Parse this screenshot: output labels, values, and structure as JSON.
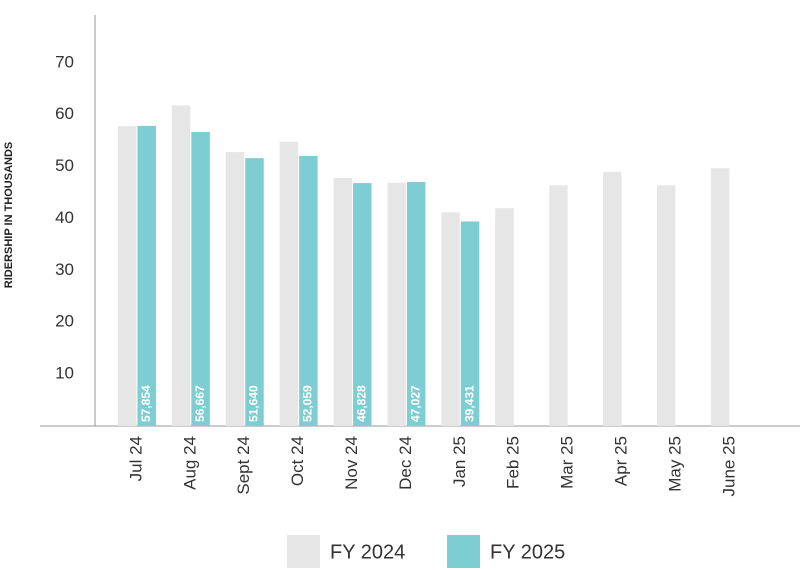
{
  "chart_data": {
    "type": "bar",
    "y_label": "RIDERSHIP IN THOUSANDS",
    "categories": [
      "Jul 24",
      "Aug 24",
      "Sept 24",
      "Oct 24",
      "Nov 24",
      "Dec 24",
      "Jan 25",
      "Feb 25",
      "Mar 25",
      "Apr 25",
      "May 25",
      "June 25"
    ],
    "series": [
      {
        "name": "FY 2024",
        "color": "#e6e6e6",
        "values": [
          57.8,
          61.8,
          52.8,
          54.8,
          47.8,
          46.9,
          41.2,
          42.0,
          46.4,
          49.0,
          46.4,
          49.7
        ]
      },
      {
        "name": "FY 2025",
        "color": "#7ecdd3",
        "values": [
          57.854,
          56.667,
          51.64,
          52.059,
          46.828,
          47.027,
          39.431,
          null,
          null,
          null,
          null,
          null
        ],
        "value_labels": [
          "57,854",
          "56,667",
          "51,640",
          "52,059",
          "46,828",
          "47,027",
          "39,431",
          null,
          null,
          null,
          null,
          null
        ]
      }
    ],
    "ylim": [
      0,
      80
    ],
    "yticks": [
      10,
      20,
      30,
      40,
      50,
      60,
      70
    ],
    "grid": false,
    "legend": "bottom"
  }
}
